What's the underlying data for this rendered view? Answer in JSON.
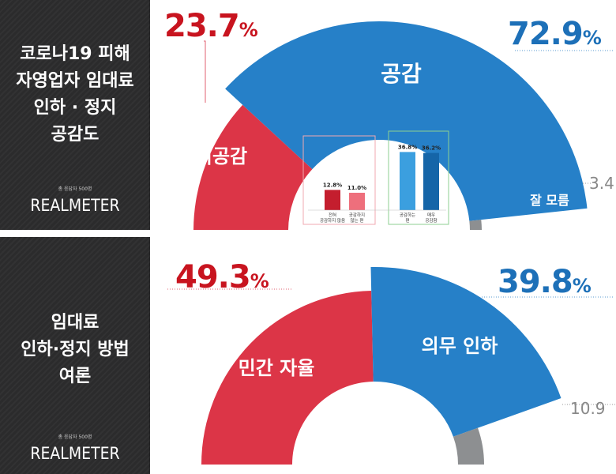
{
  "colors": {
    "sympathize": "#2680c8",
    "not_sympathize": "#dc3547",
    "dont_know": "#8d8f91",
    "strongly": "#1565a8",
    "somewhat": "#3b9fdf",
    "not_at_all": "#c41e2e",
    "not_much": "#ee6f7c",
    "red_text": "#c8141f",
    "blue_text": "#1d70b8",
    "sidebar_bg": "#2b2b2c"
  },
  "panels": [
    {
      "title_lines": [
        "코로나19 피해",
        "자영업자 임대료",
        "인하 · 정지",
        "공감도"
      ],
      "respondents": "총 응답자 500명",
      "logo": "REALMETER"
    },
    {
      "title_lines": [
        "임대료",
        "인하·정지 방법",
        "여론"
      ],
      "respondents": "총 응답자 500명",
      "logo": "REALMETER"
    }
  ],
  "chart_data": [
    {
      "type": "pie",
      "segments": [
        {
          "label": "비공감",
          "value": 23.7,
          "value_text": "23.7"
        },
        {
          "label": "공감",
          "value": 72.9,
          "value_text": "72.9"
        },
        {
          "label": "잘 모름",
          "value": 3.4,
          "value_text": "3.4"
        }
      ],
      "percent_sign": "%",
      "breakdown": {
        "type": "bar",
        "groups": [
          {
            "bars": [
              {
                "label_lines": [
                  "전혀",
                  "공감하지 않음"
                ],
                "value": 12.8,
                "value_text": "12.8%"
              },
              {
                "label_lines": [
                  "공감하지",
                  "않는 편"
                ],
                "value": 11.0,
                "value_text": "11.0%"
              }
            ]
          },
          {
            "bars": [
              {
                "label_lines": [
                  "공감하는",
                  "편"
                ],
                "value": 36.8,
                "value_text": "36.8%"
              },
              {
                "label_lines": [
                  "매우",
                  "공감함"
                ],
                "value": 36.2,
                "value_text": "36.2%"
              }
            ]
          }
        ]
      }
    },
    {
      "type": "pie",
      "segments": [
        {
          "label": "민간 자율",
          "value": 49.3,
          "value_text": "49.3"
        },
        {
          "label": "의무 인하",
          "value": 39.8,
          "value_text": "39.8"
        },
        {
          "label": "잘 모름",
          "value": 10.9,
          "value_text": "10.9"
        }
      ],
      "percent_sign": "%"
    }
  ]
}
